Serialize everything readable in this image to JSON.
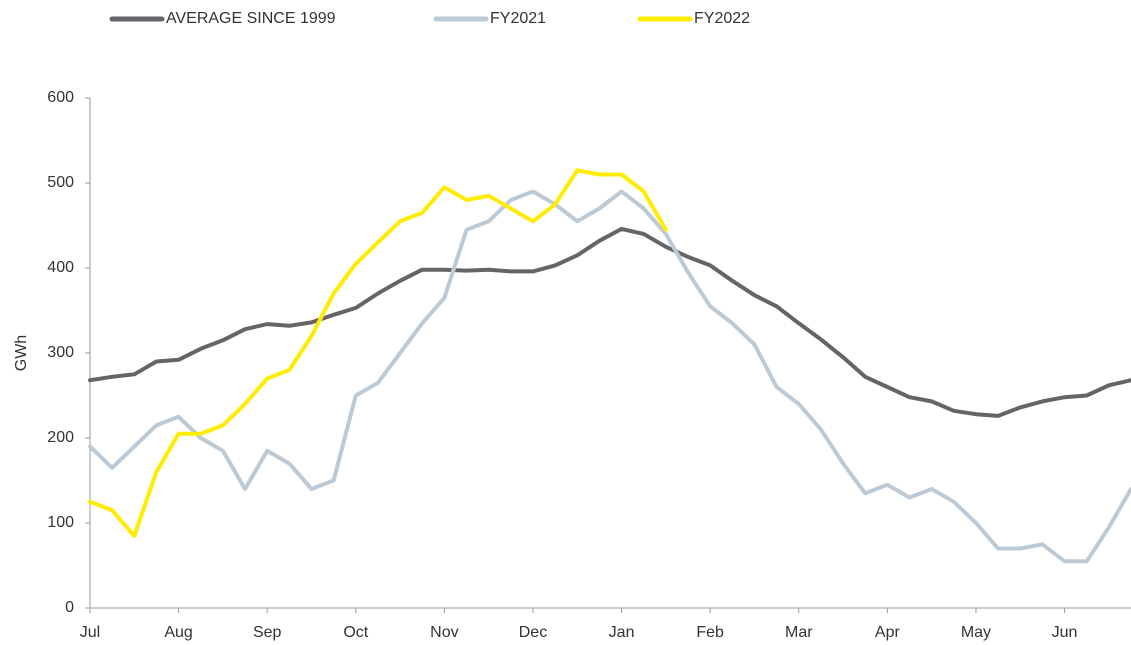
{
  "chart_data": {
    "type": "line",
    "y_label": "GWh",
    "categories": [
      "Jul",
      null,
      null,
      null,
      "Aug",
      null,
      null,
      null,
      "Sep",
      null,
      null,
      null,
      "Oct",
      null,
      null,
      null,
      "Nov",
      null,
      null,
      null,
      "Dec",
      null,
      null,
      null,
      "Jan",
      null,
      null,
      null,
      "Feb",
      null,
      null,
      null,
      "Mar",
      null,
      null,
      null,
      "Apr",
      null,
      null,
      null,
      "May",
      null,
      null,
      null,
      "Jun",
      null,
      null,
      null
    ],
    "series": [
      {
        "name": "AVERAGE SINCE 1999",
        "color": "#646469",
        "values": [
          268,
          272,
          275,
          290,
          292,
          305,
          315,
          328,
          334,
          332,
          336,
          345,
          353,
          370,
          385,
          398,
          398,
          397,
          398,
          396,
          396,
          403,
          415,
          432,
          446,
          440,
          425,
          413,
          403,
          385,
          368,
          355,
          335,
          316,
          295,
          272,
          260,
          248,
          243,
          232,
          228,
          226,
          236,
          243,
          248,
          250,
          262,
          268
        ]
      },
      {
        "name": "FY2021",
        "color": "#bccad6",
        "values": [
          190,
          165,
          190,
          215,
          225,
          200,
          185,
          140,
          185,
          170,
          140,
          150,
          250,
          265,
          300,
          335,
          365,
          445,
          455,
          480,
          490,
          475,
          455,
          470,
          490,
          470,
          440,
          395,
          355,
          335,
          310,
          260,
          240,
          210,
          170,
          135,
          145,
          130,
          140,
          125,
          100,
          70,
          70,
          75,
          55,
          55,
          95,
          140
        ]
      },
      {
        "name": "FY2022",
        "color": "#ffec00",
        "values": [
          125,
          115,
          85,
          160,
          205,
          205,
          215,
          240,
          270,
          280,
          320,
          370,
          405,
          430,
          455,
          465,
          495,
          480,
          485,
          470,
          455,
          475,
          515,
          510,
          510,
          490,
          445,
          null,
          null,
          null,
          null,
          null,
          null,
          null,
          null,
          null,
          null,
          null,
          null,
          null,
          null,
          null,
          null,
          null,
          null,
          null,
          null,
          null
        ]
      }
    ],
    "ylim": [
      0,
      600
    ],
    "yticks": [
      0,
      100,
      200,
      300,
      400,
      500,
      600
    ],
    "legend": "top",
    "grid": false
  }
}
